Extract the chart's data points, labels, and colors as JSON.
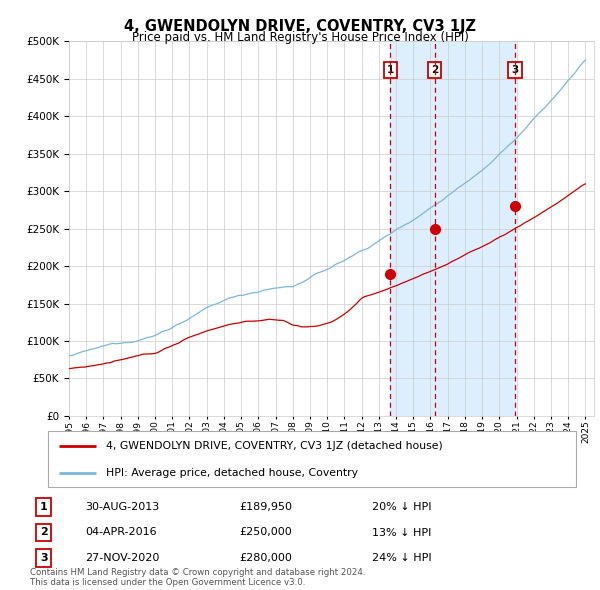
{
  "title": "4, GWENDOLYN DRIVE, COVENTRY, CV3 1JZ",
  "subtitle": "Price paid vs. HM Land Registry's House Price Index (HPI)",
  "footer": "Contains HM Land Registry data © Crown copyright and database right 2024.\nThis data is licensed under the Open Government Licence v3.0.",
  "legend_house": "4, GWENDOLYN DRIVE, COVENTRY, CV3 1JZ (detached house)",
  "legend_hpi": "HPI: Average price, detached house, Coventry",
  "transactions": [
    {
      "label": "1",
      "date": "30-AUG-2013",
      "price": 189950,
      "pct": "20%",
      "dir": "↓",
      "x": 2013.66
    },
    {
      "label": "2",
      "date": "04-APR-2016",
      "price": 250000,
      "pct": "13%",
      "dir": "↓",
      "x": 2016.26
    },
    {
      "label": "3",
      "date": "27-NOV-2020",
      "price": 280000,
      "pct": "24%",
      "dir": "↓",
      "x": 2020.91
    }
  ],
  "hpi_color": "#7ab8d9",
  "house_color": "#cc0000",
  "marker_color": "#cc0000",
  "vline_color": "#cc0000",
  "shade_color": "#ddeeff",
  "background_color": "#ffffff",
  "grid_color": "#cccccc",
  "ylim": [
    0,
    500000
  ],
  "yticks": [
    0,
    50000,
    100000,
    150000,
    200000,
    250000,
    300000,
    350000,
    400000,
    450000,
    500000
  ],
  "xstart": 1995,
  "xend": 2025.5
}
